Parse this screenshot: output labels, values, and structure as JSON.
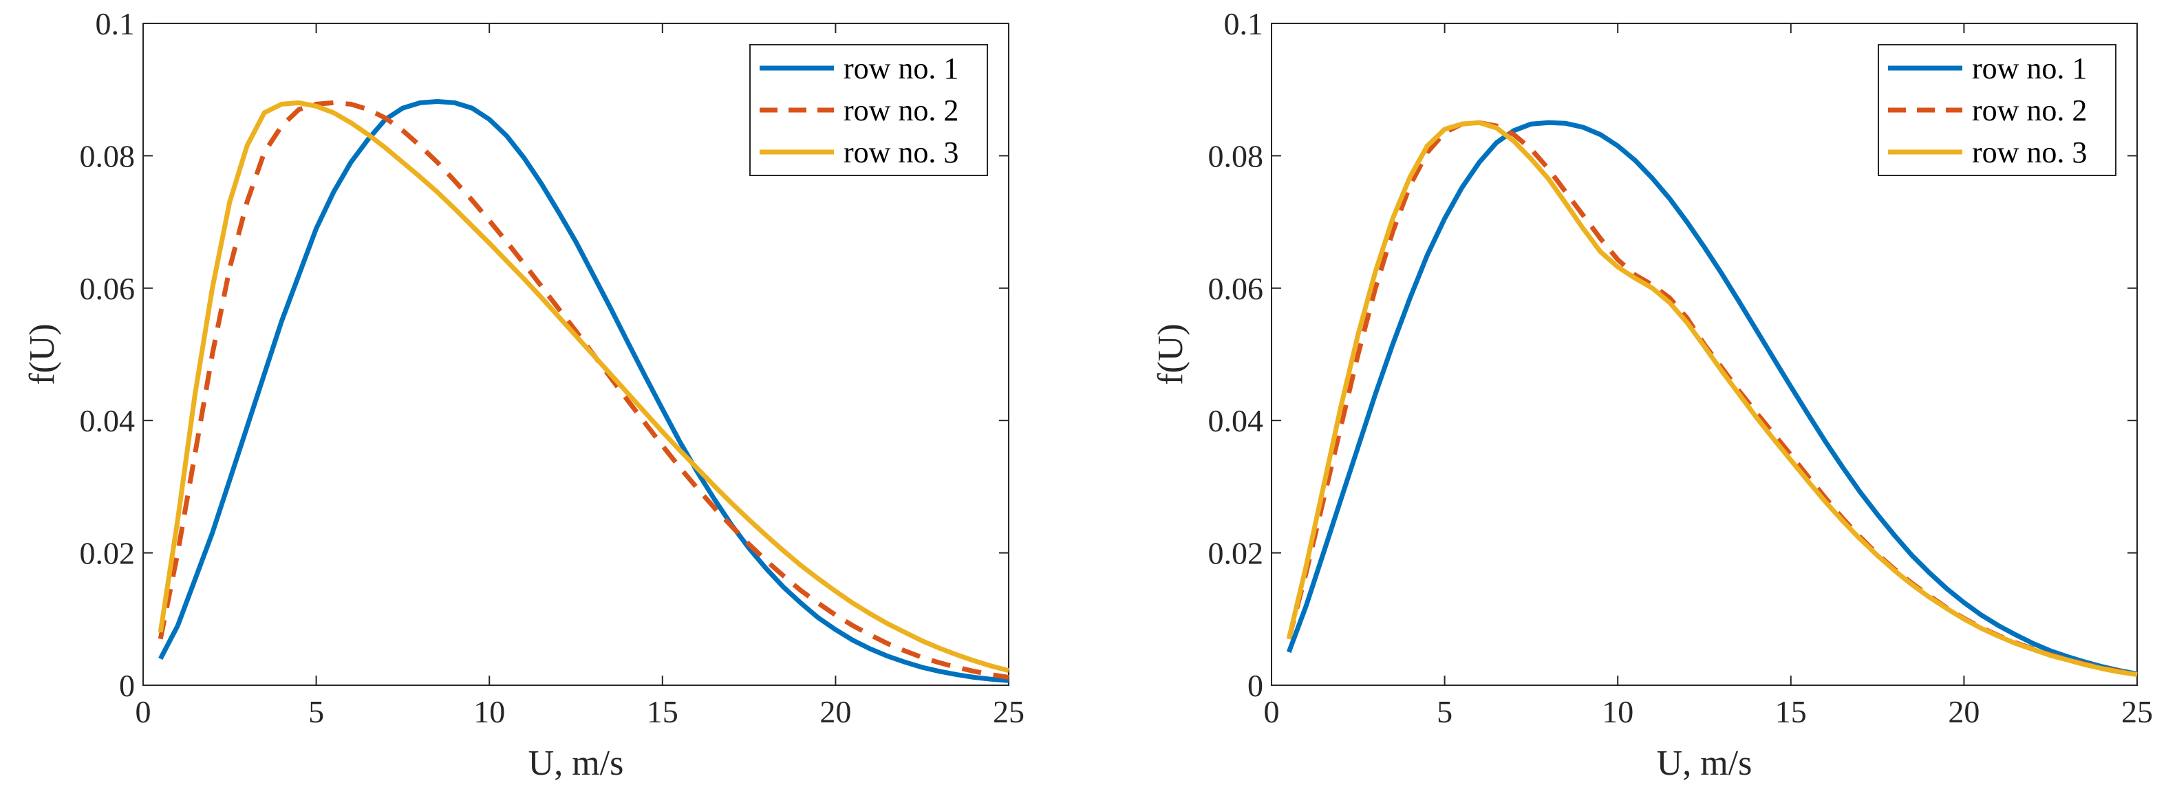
{
  "chart_data": [
    {
      "type": "line",
      "title": "",
      "xlabel": "U, m/s",
      "ylabel": "f(U)",
      "xlim": [
        0,
        25
      ],
      "ylim": [
        0,
        0.1
      ],
      "xticks": [
        "0",
        "5",
        "10",
        "15",
        "20",
        "25"
      ],
      "yticks": [
        "0",
        "0.02",
        "0.04",
        "0.06",
        "0.08",
        "0.1"
      ],
      "legend_position": "top-right",
      "grid": false,
      "x": [
        0.5,
        1,
        1.5,
        2,
        2.5,
        3,
        3.5,
        4,
        4.5,
        5,
        5.5,
        6,
        6.5,
        7,
        7.5,
        8,
        8.5,
        9,
        9.5,
        10,
        10.5,
        11,
        11.5,
        12,
        12.5,
        13,
        13.5,
        14,
        14.5,
        15,
        15.5,
        16,
        16.5,
        17,
        17.5,
        18,
        18.5,
        19,
        19.5,
        20,
        20.5,
        21,
        21.5,
        22,
        22.5,
        23,
        23.5,
        24,
        24.5,
        25
      ],
      "series": [
        {
          "name": "row no. 1",
          "color": "#0072BD",
          "style": "solid",
          "values": [
            0.004,
            0.009,
            0.016,
            0.023,
            0.031,
            0.039,
            0.047,
            0.055,
            0.062,
            0.069,
            0.0745,
            0.079,
            0.0825,
            0.0855,
            0.0872,
            0.088,
            0.0882,
            0.088,
            0.0872,
            0.0855,
            0.083,
            0.0797,
            0.0758,
            0.0715,
            0.067,
            0.062,
            0.057,
            0.0518,
            0.0467,
            0.0417,
            0.0368,
            0.0323,
            0.0281,
            0.0242,
            0.0207,
            0.0176,
            0.0148,
            0.0124,
            0.0102,
            0.0084,
            0.0068,
            0.0055,
            0.0044,
            0.0035,
            0.0027,
            0.0021,
            0.0016,
            0.0012,
            0.0009,
            0.0007
          ]
        },
        {
          "name": "row no. 2",
          "color": "#D95319",
          "style": "dashed",
          "values": [
            0.007,
            0.02,
            0.035,
            0.05,
            0.063,
            0.073,
            0.0805,
            0.0845,
            0.087,
            0.0878,
            0.088,
            0.0878,
            0.087,
            0.0857,
            0.0838,
            0.0815,
            0.079,
            0.0762,
            0.0733,
            0.0702,
            0.067,
            0.0637,
            0.0603,
            0.0569,
            0.0535,
            0.05,
            0.0465,
            0.043,
            0.0396,
            0.0362,
            0.0329,
            0.0298,
            0.0268,
            0.024,
            0.0213,
            0.0188,
            0.0165,
            0.0143,
            0.0124,
            0.0106,
            0.009,
            0.0076,
            0.0063,
            0.0052,
            0.0042,
            0.0034,
            0.0027,
            0.0021,
            0.0016,
            0.0012
          ]
        },
        {
          "name": "row no. 3",
          "color": "#EDB120",
          "style": "solid",
          "values": [
            0.008,
            0.025,
            0.044,
            0.06,
            0.073,
            0.0815,
            0.0865,
            0.0878,
            0.088,
            0.0875,
            0.0865,
            0.085,
            0.0832,
            0.0812,
            0.079,
            0.0768,
            0.0745,
            0.072,
            0.0694,
            0.0668,
            0.0641,
            0.0614,
            0.0586,
            0.0557,
            0.0528,
            0.0499,
            0.047,
            0.0441,
            0.0412,
            0.0383,
            0.0355,
            0.0328,
            0.0301,
            0.0275,
            0.025,
            0.0226,
            0.0203,
            0.0181,
            0.0161,
            0.0142,
            0.0124,
            0.0108,
            0.0093,
            0.008,
            0.0067,
            0.0056,
            0.0046,
            0.0037,
            0.0029,
            0.0022
          ]
        }
      ]
    },
    {
      "type": "line",
      "title": "",
      "xlabel": "U, m/s",
      "ylabel": "f(U)",
      "xlim": [
        0,
        25
      ],
      "ylim": [
        0,
        0.1
      ],
      "xticks": [
        "0",
        "5",
        "10",
        "15",
        "20",
        "25"
      ],
      "yticks": [
        "0",
        "0.02",
        "0.04",
        "0.06",
        "0.08",
        "0.1"
      ],
      "legend_position": "top-right",
      "grid": false,
      "x": [
        0.5,
        1,
        1.5,
        2,
        2.5,
        3,
        3.5,
        4,
        4.5,
        5,
        5.5,
        6,
        6.5,
        7,
        7.5,
        8,
        8.5,
        9,
        9.5,
        10,
        10.5,
        11,
        11.5,
        12,
        12.5,
        13,
        13.5,
        14,
        14.5,
        15,
        15.5,
        16,
        16.5,
        17,
        17.5,
        18,
        18.5,
        19,
        19.5,
        20,
        20.5,
        21,
        21.5,
        22,
        22.5,
        23,
        23.5,
        24,
        24.5,
        25
      ],
      "series": [
        {
          "name": "row no. 1",
          "color": "#0072BD",
          "style": "solid",
          "values": [
            0.005,
            0.012,
            0.02,
            0.028,
            0.036,
            0.044,
            0.0515,
            0.0585,
            0.065,
            0.0705,
            0.0752,
            0.079,
            0.082,
            0.0838,
            0.0848,
            0.085,
            0.0849,
            0.0843,
            0.0832,
            0.0815,
            0.0793,
            0.0766,
            0.0735,
            0.07,
            0.0662,
            0.0622,
            0.058,
            0.0537,
            0.0494,
            0.0451,
            0.0409,
            0.0368,
            0.0329,
            0.0292,
            0.0258,
            0.0226,
            0.0196,
            0.017,
            0.0146,
            0.0125,
            0.0106,
            0.009,
            0.0076,
            0.0063,
            0.0052,
            0.0043,
            0.0035,
            0.0028,
            0.0022,
            0.0017
          ]
        },
        {
          "name": "row no. 2",
          "color": "#D95319",
          "style": "dashed",
          "values": [
            0.007,
            0.017,
            0.028,
            0.039,
            0.05,
            0.06,
            0.0685,
            0.0755,
            0.0805,
            0.0835,
            0.0848,
            0.085,
            0.0845,
            0.0832,
            0.081,
            0.078,
            0.0745,
            0.071,
            0.0675,
            0.0643,
            0.062,
            0.0605,
            0.0585,
            0.0555,
            0.0515,
            0.048,
            0.0445,
            0.0412,
            0.038,
            0.0348,
            0.0315,
            0.0283,
            0.0252,
            0.0224,
            0.0198,
            0.0175,
            0.0154,
            0.0135,
            0.0117,
            0.0101,
            0.0087,
            0.0075,
            0.0064,
            0.0055,
            0.0046,
            0.0039,
            0.0032,
            0.0026,
            0.0021,
            0.0017
          ]
        },
        {
          "name": "row no. 3",
          "color": "#EDB120",
          "style": "solid",
          "values": [
            0.007,
            0.018,
            0.03,
            0.042,
            0.053,
            0.0625,
            0.0705,
            0.0768,
            0.0815,
            0.084,
            0.0848,
            0.085,
            0.0842,
            0.0822,
            0.0795,
            0.0765,
            0.0728,
            0.069,
            0.0655,
            0.0632,
            0.0615,
            0.06,
            0.0578,
            0.0548,
            0.0512,
            0.0475,
            0.044,
            0.0405,
            0.0372,
            0.034,
            0.0308,
            0.0277,
            0.0248,
            0.0221,
            0.0196,
            0.0173,
            0.0152,
            0.0133,
            0.0116,
            0.01,
            0.0086,
            0.0074,
            0.0063,
            0.0054,
            0.0045,
            0.0038,
            0.0031,
            0.0025,
            0.002,
            0.0016
          ]
        }
      ]
    }
  ]
}
